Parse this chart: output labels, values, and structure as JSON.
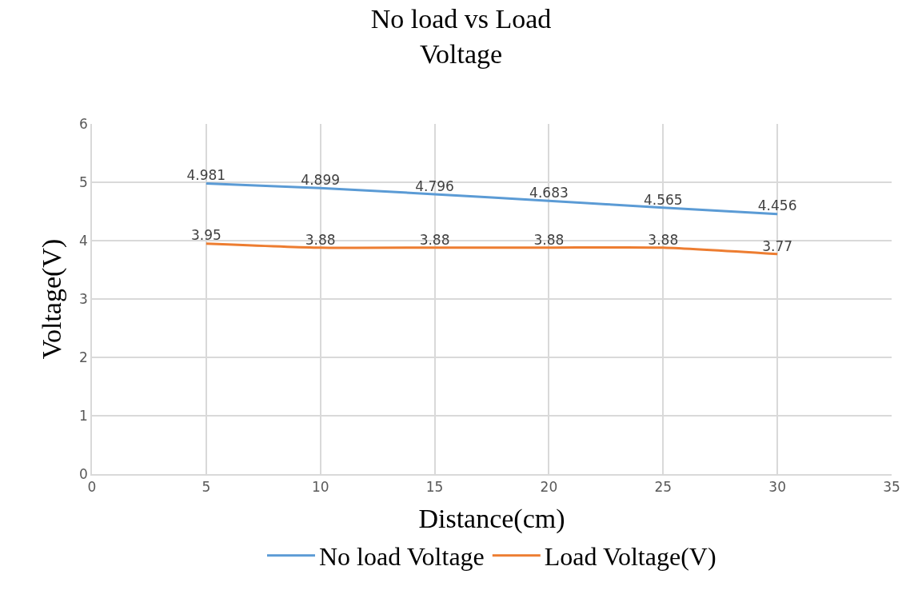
{
  "chart_data": {
    "type": "line",
    "title": "No load vs Load Voltage",
    "xlabel": "Distance(cm)",
    "ylabel": "Voltage(V)",
    "x": [
      5,
      10,
      15,
      20,
      25,
      30
    ],
    "series": [
      {
        "name": "No load Voltage",
        "color": "#5b9bd5",
        "values": [
          4.981,
          4.899,
          4.796,
          4.683,
          4.565,
          4.456
        ]
      },
      {
        "name": "Load Voltage(V)",
        "color": "#ed7d31",
        "values": [
          3.95,
          3.88,
          3.88,
          3.88,
          3.88,
          3.77
        ]
      }
    ],
    "xlim": [
      0,
      35
    ],
    "xticks": [
      0,
      5,
      10,
      15,
      20,
      25,
      30,
      35
    ],
    "ylim": [
      0,
      6
    ],
    "yticks": [
      0,
      1,
      2,
      3,
      4,
      5,
      6
    ],
    "grid": true,
    "legend": "bottom",
    "marker": "none",
    "line_style": "solid",
    "data_labels": true
  }
}
